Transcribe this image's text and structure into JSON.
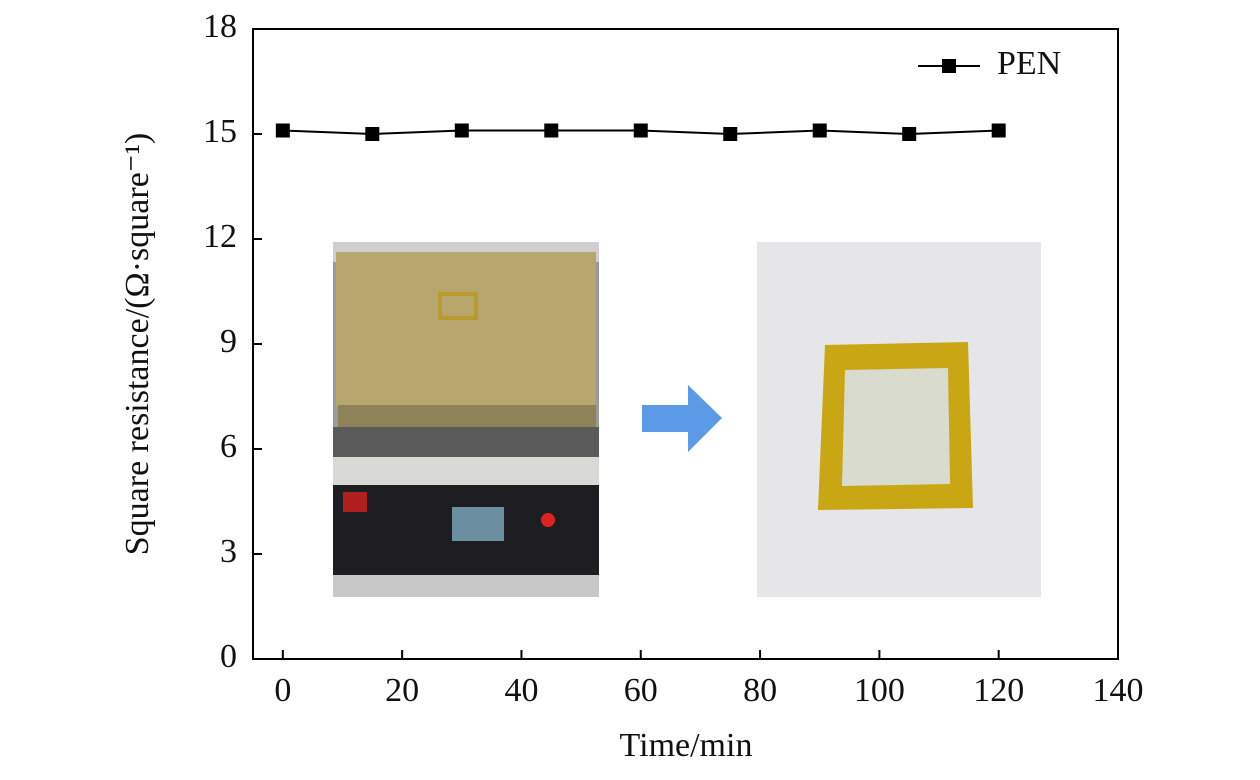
{
  "chart_data": {
    "type": "line",
    "xlabel": "Time/min",
    "ylabel": "Square resistance/(Ω·square⁻¹)",
    "x": [
      0,
      15,
      30,
      45,
      60,
      75,
      90,
      105,
      120
    ],
    "series": [
      {
        "name": "PEN",
        "color": "#000000",
        "values": [
          15.1,
          15.0,
          15.1,
          15.1,
          15.1,
          15.0,
          15.1,
          15.0,
          15.1
        ]
      }
    ],
    "xlim": [
      -5,
      140
    ],
    "xticks": [
      0,
      20,
      40,
      60,
      80,
      100,
      120,
      140
    ],
    "ylim": [
      0,
      18
    ],
    "yticks": [
      0,
      3,
      6,
      9,
      12,
      15,
      18
    ],
    "legend": "top-right",
    "grid": false
  }
}
